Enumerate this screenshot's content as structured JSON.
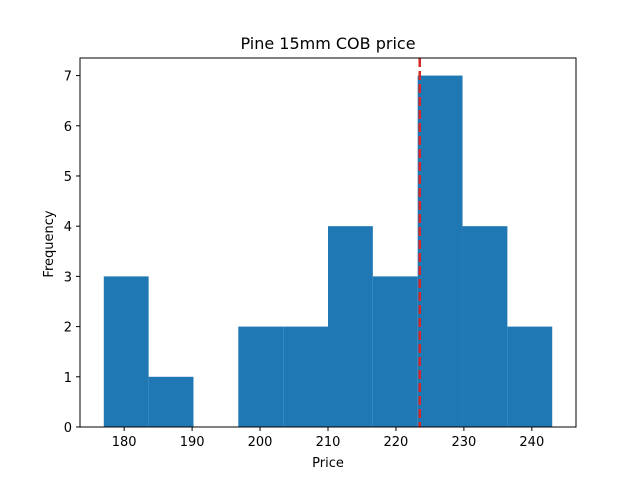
{
  "chart_data": {
    "type": "bar",
    "title": "Pine 15mm COB price",
    "xlabel": "Price",
    "ylabel": "Frequency",
    "xlim": [
      173.5,
      246.5
    ],
    "ylim": [
      0,
      7.35
    ],
    "bin_edges": [
      177.0,
      183.6,
      190.2,
      196.8,
      203.4,
      210.0,
      216.6,
      223.2,
      229.8,
      236.4,
      243.0
    ],
    "values": [
      3,
      1,
      0,
      2,
      2,
      4,
      3,
      7,
      4,
      2
    ],
    "x_ticks": [
      180,
      190,
      200,
      210,
      220,
      230,
      240
    ],
    "y_ticks": [
      0,
      1,
      2,
      3,
      4,
      5,
      6,
      7
    ],
    "reference_line": {
      "x": 223.5,
      "style": "dashed"
    },
    "grid": false,
    "colors": {
      "bar": "#1f77b4",
      "reference_line": "#d62728",
      "axis": "#000000"
    }
  }
}
